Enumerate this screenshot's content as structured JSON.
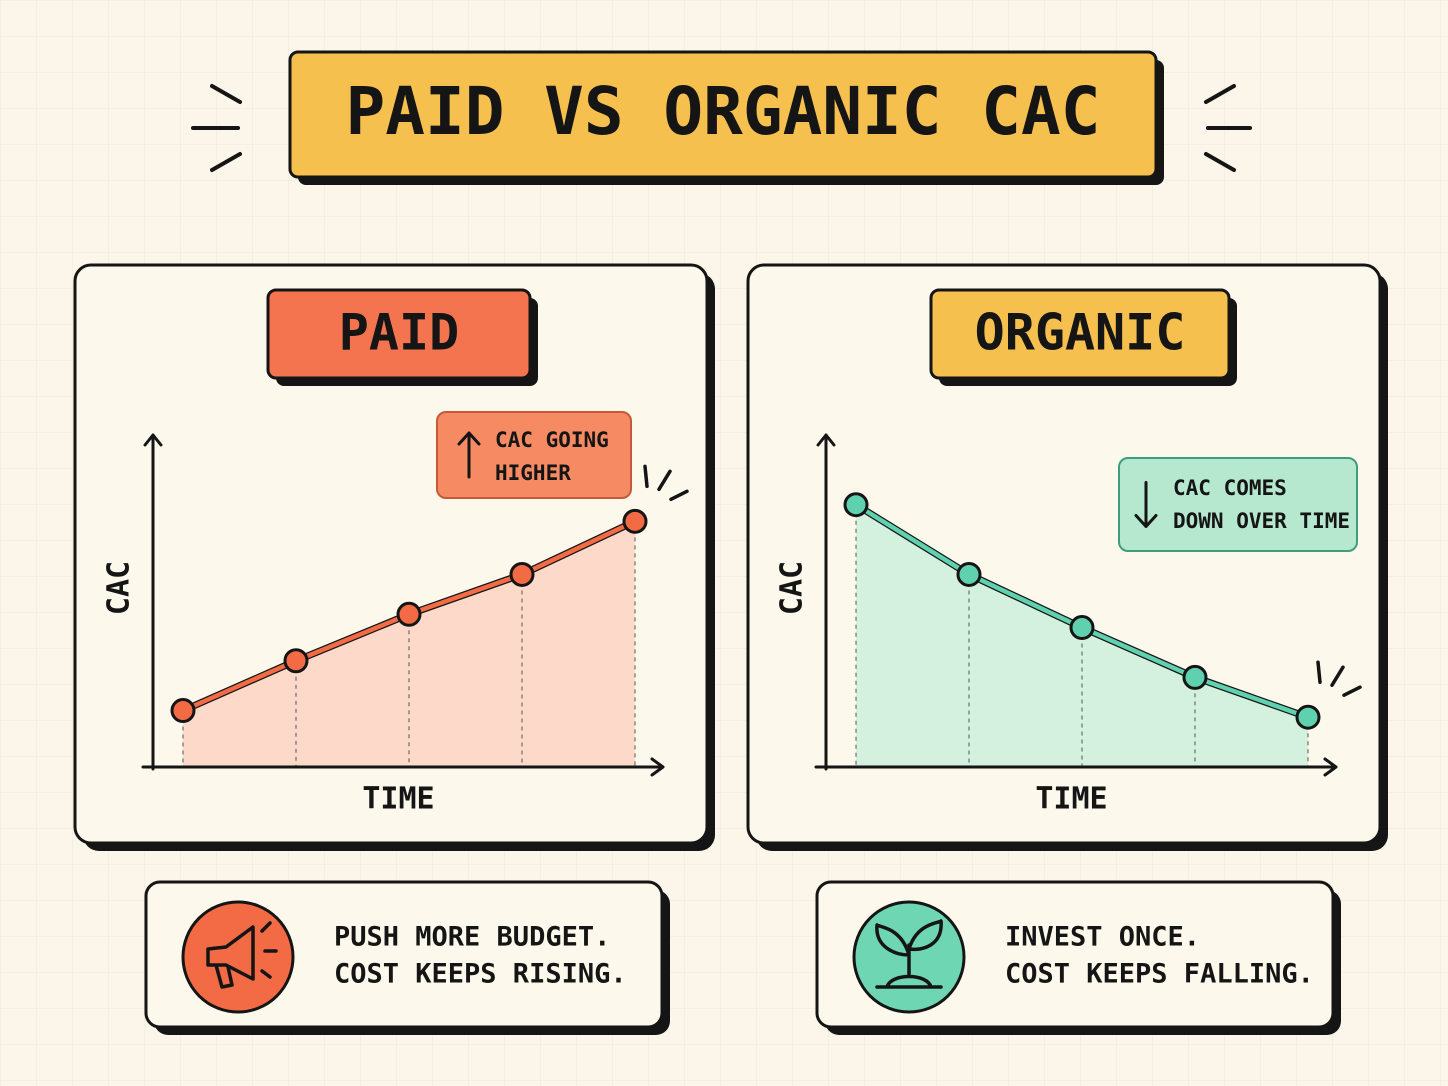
{
  "title": "PAID VS ORGANIC CAC",
  "chart_data": [
    {
      "type": "line",
      "title": "PAID",
      "x_label": "TIME",
      "y_label": "CAC",
      "annotation": [
        "CAC GOING",
        "HIGHER"
      ],
      "trend": "up",
      "values": [
        17,
        32,
        46,
        58,
        74
      ],
      "color": "#f26b45",
      "area_color": "#fbd3c2",
      "badge_color": "#f47450",
      "ylim": [
        0,
        100
      ]
    },
    {
      "type": "line",
      "title": "ORGANIC",
      "x_label": "TIME",
      "y_label": "CAC",
      "annotation": [
        "CAC COMES",
        "DOWN OVER TIME"
      ],
      "trend": "down",
      "values": [
        79,
        58,
        42,
        27,
        15
      ],
      "color": "#5fd1ae",
      "area_color": "#cdeedd",
      "badge_color": "#f6c04e",
      "ylim": [
        0,
        100
      ]
    }
  ],
  "footer": [
    {
      "lines": [
        "PUSH MORE BUDGET.",
        "COST KEEPS RISING."
      ]
    },
    {
      "lines": [
        "INVEST ONCE.",
        "COST KEEPS FALLING."
      ]
    }
  ]
}
